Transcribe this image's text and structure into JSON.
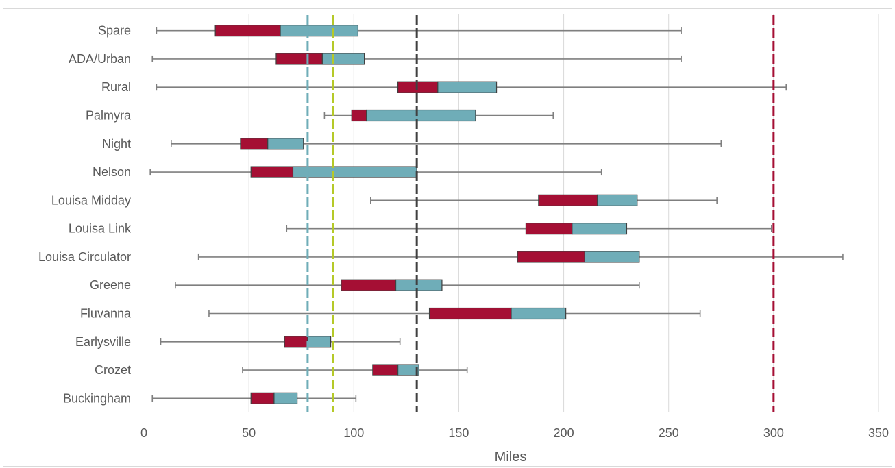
{
  "chart_data": {
    "type": "boxplot",
    "orientation": "horizontal",
    "xlabel": "Miles",
    "xlim": [
      0,
      350
    ],
    "xticks": [
      0,
      50,
      100,
      150,
      200,
      250,
      300,
      350
    ],
    "grid": "vertical",
    "colors": {
      "lower_box": "#a50f34",
      "upper_box": "#6fadb8",
      "whisker": "#7f7f7f",
      "gridline": "#d9d9d9",
      "box_border": "#404040"
    },
    "categories": [
      "Spare",
      "ADA/Urban",
      "Rural",
      "Palmyra",
      "Night",
      "Nelson",
      "Louisa Midday",
      "Louisa Link",
      "Louisa Circulator",
      "Greene",
      "Fluvanna",
      "Earlysville",
      "Crozet",
      "Buckingham"
    ],
    "boxes": [
      {
        "category": "Spare",
        "min": 6,
        "q1": 34,
        "median": 65,
        "q3": 102,
        "max": 256
      },
      {
        "category": "ADA/Urban",
        "min": 4,
        "q1": 63,
        "median": 85,
        "q3": 105,
        "max": 256
      },
      {
        "category": "Rural",
        "min": 6,
        "q1": 121,
        "median": 140,
        "q3": 168,
        "max": 306
      },
      {
        "category": "Palmyra",
        "min": 86,
        "q1": 99,
        "median": 106,
        "q3": 158,
        "max": 195
      },
      {
        "category": "Night",
        "min": 13,
        "q1": 46,
        "median": 59,
        "q3": 76,
        "max": 275
      },
      {
        "category": "Nelson",
        "min": 3,
        "q1": 51,
        "median": 71,
        "q3": 130,
        "max": 218
      },
      {
        "category": "Louisa Midday",
        "min": 108,
        "q1": 188,
        "median": 216,
        "q3": 235,
        "max": 273
      },
      {
        "category": "Louisa Link",
        "min": 68,
        "q1": 182,
        "median": 204,
        "q3": 230,
        "max": 299
      },
      {
        "category": "Louisa Circulator",
        "min": 26,
        "q1": 178,
        "median": 210,
        "q3": 236,
        "max": 333
      },
      {
        "category": "Greene",
        "min": 15,
        "q1": 94,
        "median": 120,
        "q3": 142,
        "max": 236
      },
      {
        "category": "Fluvanna",
        "min": 31,
        "q1": 136,
        "median": 175,
        "q3": 201,
        "max": 265
      },
      {
        "category": "Earlysville",
        "min": 8,
        "q1": 67,
        "median": 78,
        "q3": 89,
        "max": 122
      },
      {
        "category": "Crozet",
        "min": 47,
        "q1": 109,
        "median": 121,
        "q3": 131,
        "max": 154
      },
      {
        "category": "Buckingham",
        "min": 4,
        "q1": 51,
        "median": 62,
        "q3": 73,
        "max": 101
      }
    ],
    "reference_lines": [
      {
        "x": 78,
        "color": "#6fadb8",
        "style": "dashed"
      },
      {
        "x": 90,
        "color": "#b5c928",
        "style": "dashed"
      },
      {
        "x": 130,
        "color": "#404040",
        "style": "dashed"
      },
      {
        "x": 300,
        "color": "#a50f34",
        "style": "dashed"
      }
    ]
  }
}
